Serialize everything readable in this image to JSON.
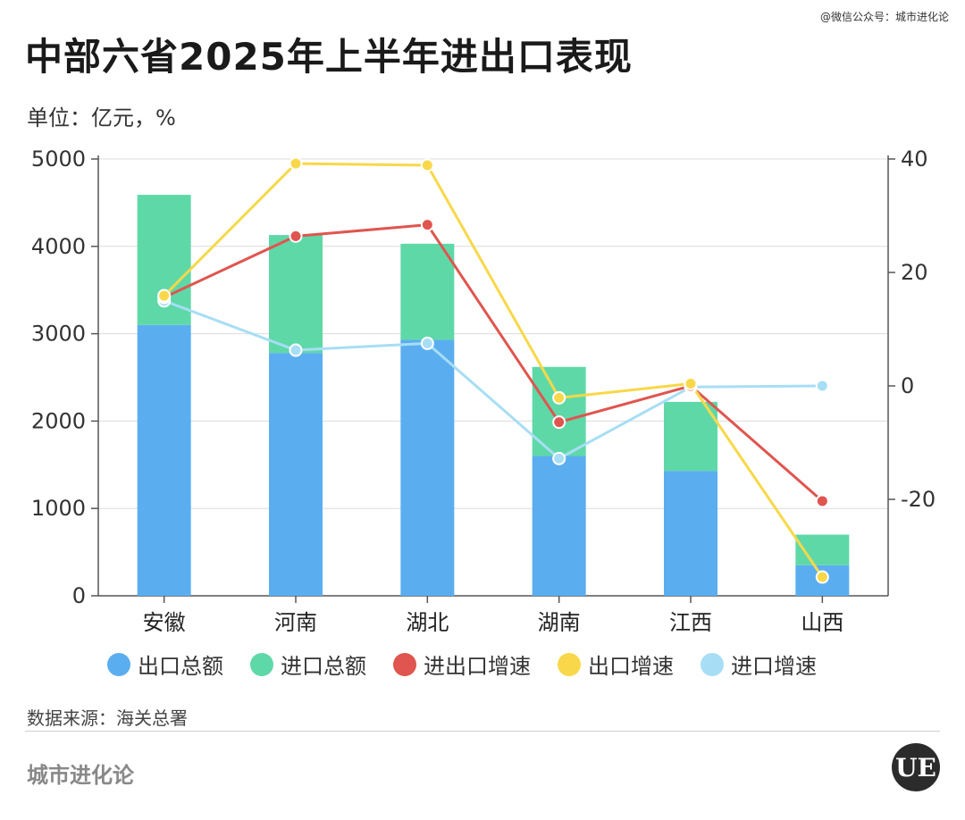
{
  "credit": "@微信公众号：城市进化论",
  "unit": "单位：亿元，%",
  "source": "数据来源：海关总署",
  "brand": "城市进化论",
  "logo_text": "UE",
  "colors": {
    "export_total": "#5aaef0",
    "import_total": "#5fd8a8",
    "trade_growth": "#e0554f",
    "export_growth": "#f8d84a",
    "import_growth": "#a7def5",
    "grid": "#dcdcdc",
    "axis": "#555555"
  },
  "chart_data": {
    "type": "bar",
    "title": "中部六省2025年上半年进出口表现",
    "categories": [
      "安徽",
      "河南",
      "湖北",
      "湖南",
      "江西",
      "山西"
    ],
    "stacked": true,
    "left_axis": {
      "ylim": [
        0,
        5000
      ],
      "ticks": [
        0,
        1000,
        2000,
        3000,
        4000,
        5000
      ]
    },
    "right_axis": {
      "ylim": [
        -37,
        40
      ],
      "ticks": [
        -20,
        0,
        20,
        40
      ]
    },
    "bar_series": [
      {
        "name": "出口总额",
        "color_key": "export_total",
        "values": [
          3100,
          2780,
          2930,
          1600,
          1430,
          350
        ]
      },
      {
        "name": "进口总额",
        "color_key": "import_total",
        "values": [
          1490,
          1350,
          1100,
          1020,
          790,
          350
        ]
      }
    ],
    "line_series": [
      {
        "name": "进出口增速",
        "color_key": "trade_growth",
        "values": [
          15.6,
          26.4,
          28.4,
          -6.4,
          0.0,
          -20.3
        ]
      },
      {
        "name": "出口增速",
        "color_key": "export_growth",
        "values": [
          15.9,
          39.2,
          38.9,
          -2.1,
          0.4,
          -33.7
        ]
      },
      {
        "name": "进口增速",
        "color_key": "import_growth",
        "values": [
          15.0,
          6.3,
          7.5,
          -12.8,
          -0.2,
          0.0
        ]
      }
    ],
    "grid": true,
    "legend_position": "bottom"
  }
}
